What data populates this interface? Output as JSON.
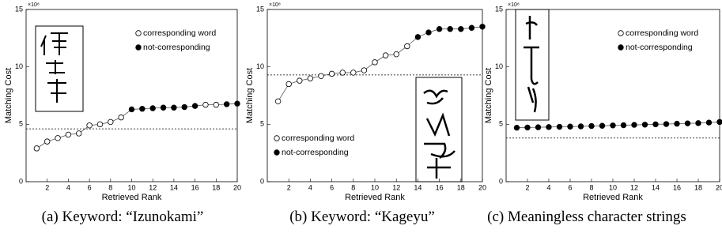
{
  "chart_data": [
    {
      "type": "line",
      "caption": "(a) Keyword: “Izunokami”",
      "xlabel": "Retrieved Rank",
      "ylabel": "Matching Cost",
      "y_multiplier": "×10⁸",
      "x": [
        1,
        2,
        3,
        4,
        5,
        6,
        7,
        8,
        9,
        10,
        11,
        12,
        13,
        14,
        15,
        16,
        17,
        18,
        19,
        20
      ],
      "series": [
        {
          "name": "corresponding word",
          "marker": "open",
          "color": "#000000",
          "values": [
            2.9,
            3.5,
            3.8,
            4.1,
            4.2,
            4.9,
            5.0,
            5.2,
            5.6,
            null,
            null,
            null,
            null,
            null,
            null,
            null,
            6.7,
            6.7,
            null,
            null
          ]
        },
        {
          "name": "not-corresponding",
          "marker": "filled",
          "color": "#000000",
          "values": [
            null,
            null,
            null,
            null,
            null,
            null,
            null,
            null,
            null,
            6.3,
            6.35,
            6.4,
            6.45,
            6.45,
            6.5,
            6.6,
            null,
            null,
            6.75,
            6.8
          ]
        }
      ],
      "threshold": 4.6,
      "xlim": [
        0,
        20
      ],
      "ylim": [
        0,
        15
      ],
      "xticks": [
        2,
        4,
        6,
        8,
        10,
        12,
        14,
        16,
        18,
        20
      ],
      "yticks": [
        0,
        5,
        10,
        15
      ],
      "legend": "upper right"
    },
    {
      "type": "line",
      "caption": "(b) Keyword: “Kageyu”",
      "xlabel": "Retrieved Rank",
      "ylabel": "Matching Cost",
      "y_multiplier": "×10⁸",
      "x": [
        1,
        2,
        3,
        4,
        5,
        6,
        7,
        8,
        9,
        10,
        11,
        12,
        13,
        14,
        15,
        16,
        17,
        18,
        19,
        20
      ],
      "series": [
        {
          "name": "corresponding word",
          "marker": "open",
          "color": "#000000",
          "values": [
            7.0,
            8.5,
            8.8,
            9.0,
            9.2,
            9.4,
            9.5,
            9.5,
            9.7,
            10.4,
            11.0,
            11.1,
            11.8,
            null,
            null,
            null,
            null,
            null,
            null,
            null
          ]
        },
        {
          "name": "not-corresponding",
          "marker": "filled",
          "color": "#000000",
          "values": [
            null,
            null,
            null,
            null,
            null,
            null,
            null,
            null,
            null,
            null,
            null,
            null,
            null,
            12.6,
            13.0,
            13.3,
            13.3,
            13.3,
            13.4,
            13.5
          ]
        }
      ],
      "threshold": 9.3,
      "xlim": [
        0,
        20
      ],
      "ylim": [
        0,
        15
      ],
      "xticks": [
        2,
        4,
        6,
        8,
        10,
        12,
        14,
        16,
        18,
        20
      ],
      "yticks": [
        0,
        5,
        10,
        15
      ],
      "legend": "lower left"
    },
    {
      "type": "line",
      "caption": "(c) Meaningless character strings",
      "xlabel": "Retrieved Rank",
      "ylabel": "Matching Cost",
      "y_multiplier": "×10⁸",
      "x": [
        1,
        2,
        3,
        4,
        5,
        6,
        7,
        8,
        9,
        10,
        11,
        12,
        13,
        14,
        15,
        16,
        17,
        18,
        19,
        20
      ],
      "series": [
        {
          "name": "corresponding word",
          "marker": "open",
          "color": "#000000",
          "values": [
            null,
            null,
            null,
            null,
            null,
            null,
            null,
            null,
            null,
            null,
            null,
            null,
            null,
            null,
            null,
            null,
            null,
            null,
            null,
            null
          ]
        },
        {
          "name": "not-corresponding",
          "marker": "filled",
          "color": "#000000",
          "values": [
            4.7,
            4.72,
            4.74,
            4.76,
            4.78,
            4.8,
            4.82,
            4.85,
            4.87,
            4.9,
            4.92,
            4.95,
            4.97,
            5.0,
            5.02,
            5.05,
            5.08,
            5.1,
            5.15,
            5.2
          ]
        }
      ],
      "threshold": 3.8,
      "xlim": [
        0,
        20
      ],
      "ylim": [
        0,
        15
      ],
      "xticks": [
        2,
        4,
        6,
        8,
        10,
        12,
        14,
        16,
        18,
        20
      ],
      "yticks": [
        0,
        5,
        10,
        15
      ],
      "legend": "upper right"
    }
  ]
}
